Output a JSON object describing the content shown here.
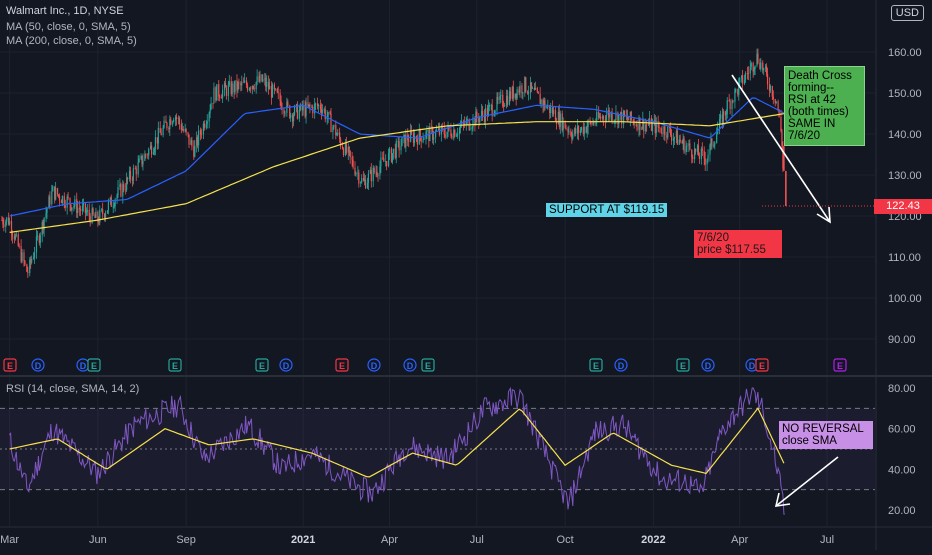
{
  "header": {
    "line1": "Walmart Inc., 1D, NYSE",
    "line2": "MA (50, close, 0, SMA, 5)",
    "line3": "MA (200, close, 0, SMA, 5)",
    "currency": "USD"
  },
  "rsi_header": "RSI (14, close, SMA, 14, 2)",
  "annotations": {
    "support": "SUPPORT AT $119.15",
    "red_line1": "7/6/20",
    "red_line2": "price $117.55",
    "green": [
      "Death Cross",
      "forming--",
      "RSI at 42",
      "(both times)",
      "SAME IN",
      "7/6/20"
    ],
    "purple_line1": "NO REVERSAL",
    "purple_line2": "close SMA"
  },
  "last_price": "122.43",
  "colors": {
    "background": "#131722",
    "candle_up": "#26a69a",
    "candle_down": "#ef5350",
    "ma50": "#2962ff",
    "ma200": "#f5e14d",
    "rsi": "#7e57c2",
    "rsi_sma": "#f5e14d"
  },
  "events": [
    {
      "label": "E",
      "color": "#f23645"
    },
    {
      "label": "D",
      "color": "#2962ff"
    },
    {
      "label": "D",
      "color": "#2962ff"
    },
    {
      "label": "E",
      "color": "#26a69a"
    },
    {
      "label": "E",
      "color": "#26a69a"
    },
    {
      "label": "E",
      "color": "#26a69a"
    },
    {
      "label": "D",
      "color": "#2962ff"
    },
    {
      "label": "E",
      "color": "#f23645"
    },
    {
      "label": "D",
      "color": "#2962ff"
    },
    {
      "label": "D",
      "color": "#2962ff"
    },
    {
      "label": "E",
      "color": "#26a69a"
    },
    {
      "label": "E",
      "color": "#26a69a"
    },
    {
      "label": "D",
      "color": "#2962ff"
    },
    {
      "label": "E",
      "color": "#26a69a"
    },
    {
      "label": "D",
      "color": "#2962ff"
    },
    {
      "label": "D",
      "color": "#2962ff"
    },
    {
      "label": "E",
      "color": "#f23645"
    },
    {
      "label": "E",
      "color": "#b21ee8"
    }
  ],
  "chart_data": [
    {
      "type": "line",
      "title": "Walmart Inc., 1D, NYSE",
      "x_tick_labels": [
        "Mar",
        "Jun",
        "Sep",
        "2021",
        "Apr",
        "Jul",
        "Oct",
        "2022",
        "Apr",
        "Jul"
      ],
      "y_tick_labels": [
        "90.00",
        "100.00",
        "110.00",
        "120.00",
        "130.00",
        "140.00",
        "150.00",
        "160.00"
      ],
      "ylim": [
        81,
        165
      ],
      "series": [
        {
          "name": "MA (50, close, 0, SMA, 5)",
          "x": [
            "2020-03-01",
            "2020-05-01",
            "2020-07-01",
            "2020-09-01",
            "2020-11-01",
            "2021-01-01",
            "2021-03-01",
            "2021-05-01",
            "2021-07-01",
            "2021-09-01",
            "2021-11-01",
            "2022-01-01",
            "2022-03-01",
            "2022-04-15",
            "2022-05-18"
          ],
          "values": [
            120,
            123,
            124,
            131,
            145,
            147,
            140,
            139,
            144,
            147,
            146,
            143,
            139,
            149,
            145
          ]
        },
        {
          "name": "MA (200, close, 0, SMA, 5)",
          "x": [
            "2020-03-01",
            "2020-06-01",
            "2020-09-01",
            "2020-12-01",
            "2021-03-01",
            "2021-06-01",
            "2021-09-01",
            "2021-12-01",
            "2022-03-01",
            "2022-05-18"
          ],
          "values": [
            116,
            119,
            123,
            132,
            139,
            142,
            143,
            143,
            142,
            145
          ]
        },
        {
          "name": "Price (close)",
          "x": [
            "2020-03-01",
            "2020-03-20",
            "2020-04-15",
            "2020-06-01",
            "2020-07-01",
            "2020-08-20",
            "2020-09-10",
            "2020-10-01",
            "2020-11-20",
            "2020-12-20",
            "2021-01-20",
            "2021-03-05",
            "2021-04-20",
            "2021-06-10",
            "2021-07-10",
            "2021-08-20",
            "2021-09-20",
            "2021-10-10",
            "2021-11-15",
            "2021-12-15",
            "2022-01-15",
            "2022-02-10",
            "2022-02-25",
            "2022-03-20",
            "2022-04-20",
            "2022-05-10",
            "2022-05-16",
            "2022-05-17",
            "2022-05-18"
          ],
          "values": [
            119,
            106,
            126,
            119,
            128,
            145,
            136,
            150,
            153,
            145,
            147,
            128,
            139,
            141,
            145,
            152,
            145,
            140,
            145,
            143,
            141,
            136,
            134,
            147,
            159,
            148,
            137,
            131,
            122.43
          ]
        }
      ],
      "annotations": [
        "SUPPORT AT $119.15",
        "7/6/20 price $117.55",
        "Death Cross forming--RSI at 42 (both times) SAME IN 7/6/20"
      ],
      "last_value_label": "122.43"
    },
    {
      "type": "line",
      "title": "RSI (14, close, SMA, 14, 2)",
      "y_tick_labels": [
        "20.00",
        "40.00",
        "60.00",
        "80.00"
      ],
      "ylim": [
        15,
        85
      ],
      "bands": [
        30,
        50,
        70
      ],
      "series": [
        {
          "name": "RSI",
          "x": [
            "2020-03-01",
            "2020-03-20",
            "2020-04-15",
            "2020-06-01",
            "2020-07-10",
            "2020-08-25",
            "2020-09-20",
            "2020-11-05",
            "2020-12-10",
            "2021-01-10",
            "2021-02-25",
            "2021-03-15",
            "2021-04-20",
            "2021-06-01",
            "2021-07-10",
            "2021-08-15",
            "2021-09-20",
            "2021-10-05",
            "2021-11-01",
            "2021-12-01",
            "2022-01-10",
            "2022-02-05",
            "2022-02-20",
            "2022-03-15",
            "2022-04-15",
            "2022-04-25",
            "2022-05-10",
            "2022-05-18"
          ],
          "values": [
            55,
            30,
            60,
            38,
            62,
            72,
            45,
            62,
            40,
            48,
            32,
            28,
            52,
            45,
            70,
            76,
            38,
            22,
            58,
            62,
            35,
            34,
            28,
            60,
            78,
            70,
            42,
            18
          ]
        },
        {
          "name": "RSI SMA",
          "x": [
            "2020-03-01",
            "2020-04-20",
            "2020-06-10",
            "2020-08-10",
            "2020-09-25",
            "2020-11-10",
            "2021-01-10",
            "2021-03-10",
            "2021-04-25",
            "2021-06-10",
            "2021-08-15",
            "2021-10-01",
            "2021-11-20",
            "2022-01-20",
            "2022-02-25",
            "2022-04-20",
            "2022-05-18"
          ],
          "values": [
            50,
            55,
            40,
            60,
            52,
            55,
            48,
            36,
            48,
            42,
            70,
            42,
            58,
            42,
            38,
            70,
            42
          ]
        }
      ],
      "annotations": [
        "NO REVERSAL close SMA"
      ]
    }
  ]
}
